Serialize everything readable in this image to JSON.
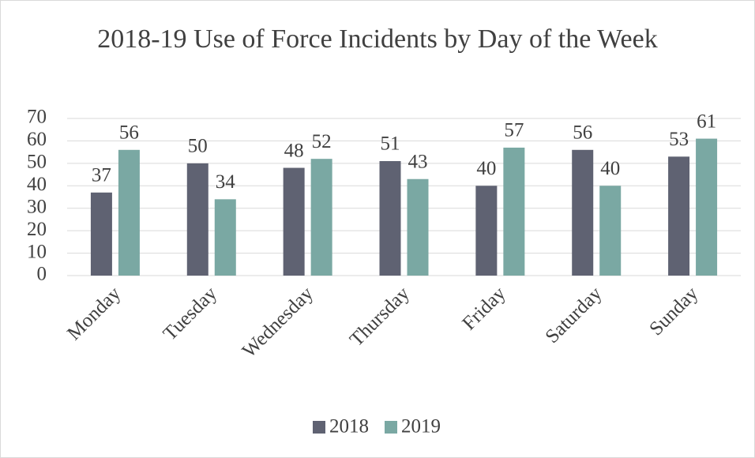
{
  "chart_data": {
    "type": "bar",
    "title": "2018-19 Use of Force Incidents by Day of the Week",
    "categories": [
      "Monday",
      "Tuesday",
      "Wednesday",
      "Thursday",
      "Friday",
      "Saturday",
      "Sunday"
    ],
    "series": [
      {
        "name": "2018",
        "color": "#5f6272",
        "values": [
          37,
          50,
          48,
          51,
          40,
          56,
          53
        ]
      },
      {
        "name": "2019",
        "color": "#7aa8a3",
        "values": [
          56,
          34,
          52,
          43,
          57,
          40,
          61
        ]
      }
    ],
    "ylim": [
      0,
      70
    ],
    "yticks": [
      0,
      10,
      20,
      30,
      40,
      50,
      60,
      70
    ],
    "grid": true,
    "legend": "bottom"
  }
}
